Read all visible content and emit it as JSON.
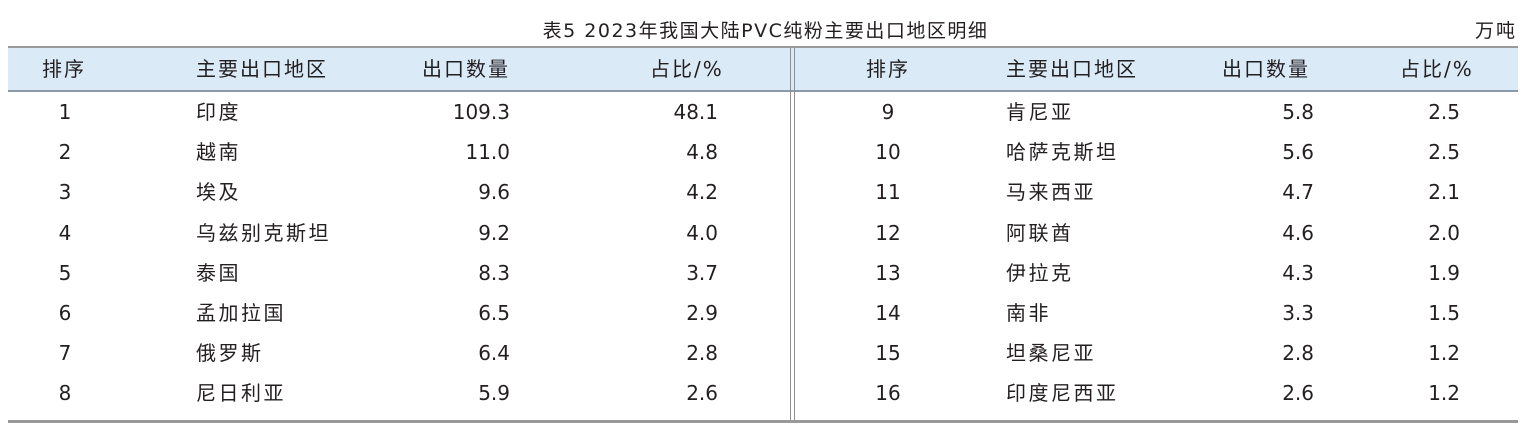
{
  "title": "表5  2023年我国大陆PVC纯粉主要出口地区明细",
  "unit": "万吨",
  "headers": {
    "rank": "排序",
    "region": "主要出口地区",
    "quantity": "出口数量",
    "share": "占比/%"
  },
  "left_rows": [
    {
      "rank": "1",
      "region": "印度",
      "quantity": "109.3",
      "share": "48.1"
    },
    {
      "rank": "2",
      "region": "越南",
      "quantity": "11.0",
      "share": "4.8"
    },
    {
      "rank": "3",
      "region": "埃及",
      "quantity": "9.6",
      "share": "4.2"
    },
    {
      "rank": "4",
      "region": "乌兹别克斯坦",
      "quantity": "9.2",
      "share": "4.0"
    },
    {
      "rank": "5",
      "region": "泰国",
      "quantity": "8.3",
      "share": "3.7"
    },
    {
      "rank": "6",
      "region": "孟加拉国",
      "quantity": "6.5",
      "share": "2.9"
    },
    {
      "rank": "7",
      "region": "俄罗斯",
      "quantity": "6.4",
      "share": "2.8"
    },
    {
      "rank": "8",
      "region": "尼日利亚",
      "quantity": "5.9",
      "share": "2.6"
    }
  ],
  "right_rows": [
    {
      "rank": "9",
      "region": "肯尼亚",
      "quantity": "5.8",
      "share": "2.5"
    },
    {
      "rank": "10",
      "region": "哈萨克斯坦",
      "quantity": "5.6",
      "share": "2.5"
    },
    {
      "rank": "11",
      "region": "马来西亚",
      "quantity": "4.7",
      "share": "2.1"
    },
    {
      "rank": "12",
      "region": "阿联酋",
      "quantity": "4.6",
      "share": "2.0"
    },
    {
      "rank": "13",
      "region": "伊拉克",
      "quantity": "4.3",
      "share": "1.9"
    },
    {
      "rank": "14",
      "region": "南非",
      "quantity": "3.3",
      "share": "1.5"
    },
    {
      "rank": "15",
      "region": "坦桑尼亚",
      "quantity": "2.8",
      "share": "1.2"
    },
    {
      "rank": "16",
      "region": "印度尼西亚",
      "quantity": "2.6",
      "share": "1.2"
    }
  ]
}
